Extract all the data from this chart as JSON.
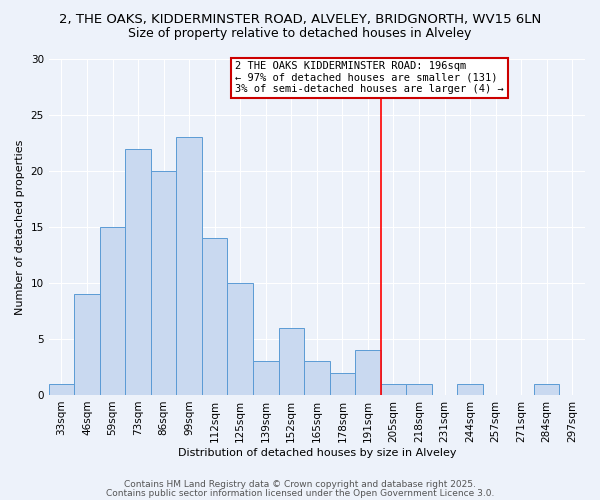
{
  "title1": "2, THE OAKS, KIDDERMINSTER ROAD, ALVELEY, BRIDGNORTH, WV15 6LN",
  "title2": "Size of property relative to detached houses in Alveley",
  "xlabel": "Distribution of detached houses by size in Alveley",
  "ylabel": "Number of detached properties",
  "categories": [
    "33sqm",
    "46sqm",
    "59sqm",
    "73sqm",
    "86sqm",
    "99sqm",
    "112sqm",
    "125sqm",
    "139sqm",
    "152sqm",
    "165sqm",
    "178sqm",
    "191sqm",
    "205sqm",
    "218sqm",
    "231sqm",
    "244sqm",
    "257sqm",
    "271sqm",
    "284sqm",
    "297sqm"
  ],
  "values": [
    1,
    9,
    15,
    22,
    20,
    23,
    14,
    10,
    3,
    6,
    3,
    2,
    4,
    1,
    1,
    0,
    1,
    0,
    0,
    1,
    0
  ],
  "bar_color": "#c9d9f0",
  "bar_edge_color": "#5b9bd5",
  "red_line_index": 12,
  "annotation_text": "2 THE OAKS KIDDERMINSTER ROAD: 196sqm\n← 97% of detached houses are smaller (131)\n3% of semi-detached houses are larger (4) →",
  "annotation_box_color": "#ffffff",
  "annotation_box_edge": "#cc0000",
  "ylim": [
    0,
    30
  ],
  "yticks": [
    0,
    5,
    10,
    15,
    20,
    25,
    30
  ],
  "footer1": "Contains HM Land Registry data © Crown copyright and database right 2025.",
  "footer2": "Contains public sector information licensed under the Open Government Licence 3.0.",
  "bg_color": "#edf2fa",
  "grid_color": "#ffffff",
  "title_fontsize": 9.5,
  "subtitle_fontsize": 9,
  "axis_label_fontsize": 8,
  "tick_fontsize": 7.5,
  "annotation_fontsize": 7.5,
  "footer_fontsize": 6.5
}
